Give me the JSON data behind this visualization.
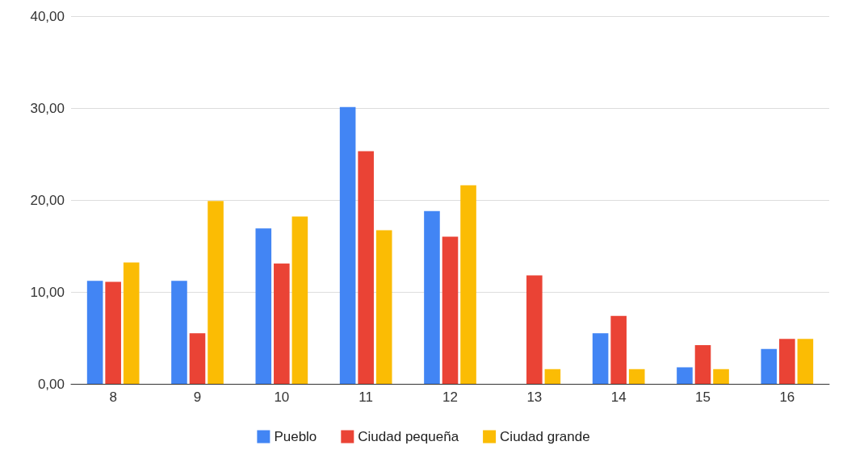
{
  "chart_data": {
    "type": "bar",
    "categories": [
      "8",
      "9",
      "10",
      "11",
      "12",
      "13",
      "14",
      "15",
      "16"
    ],
    "series": [
      {
        "name": "Pueblo",
        "color": "#4285f4",
        "values": [
          11.2,
          11.2,
          16.9,
          30.1,
          18.8,
          0,
          5.5,
          1.8,
          3.8
        ]
      },
      {
        "name": "Ciudad pequeña",
        "color": "#ea4335",
        "values": [
          11.1,
          5.5,
          13.1,
          25.3,
          16.0,
          11.8,
          7.4,
          4.2,
          4.9
        ]
      },
      {
        "name": "Ciudad grande",
        "color": "#fbbc04",
        "values": [
          13.2,
          19.9,
          18.2,
          16.7,
          21.6,
          1.6,
          1.6,
          1.6,
          4.9
        ]
      }
    ],
    "ylim": [
      0,
      40
    ],
    "yticks": [
      {
        "value": 0,
        "label": "0,00"
      },
      {
        "value": 10,
        "label": "10,00"
      },
      {
        "value": 20,
        "label": "20,00"
      },
      {
        "value": 30,
        "label": "30,00"
      },
      {
        "value": 40,
        "label": "40,00"
      }
    ],
    "grid": "y",
    "legend": "bottom"
  }
}
